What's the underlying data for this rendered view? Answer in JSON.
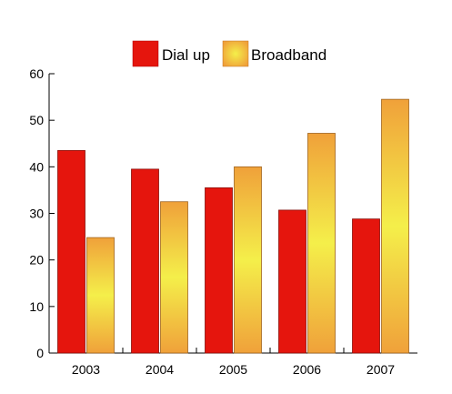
{
  "colors": {
    "dial_up": "#e5150d",
    "broadband_edge": "#f0a13a",
    "broadband_center": "#f4ef4a",
    "axis": "#000000"
  },
  "chart_data": {
    "type": "bar",
    "categories": [
      "2003",
      "2004",
      "2005",
      "2006",
      "2007"
    ],
    "series": [
      {
        "name": "Dial up",
        "values": [
          43.5,
          39.5,
          35.5,
          30.7,
          28.8
        ]
      },
      {
        "name": "Broadband",
        "values": [
          24.8,
          32.5,
          40.0,
          47.2,
          54.5
        ]
      }
    ],
    "ylim": [
      0,
      60
    ],
    "yticks": [
      "0",
      "10",
      "20",
      "30",
      "40",
      "50",
      "60"
    ],
    "legend_position": "top-center",
    "grid": false
  }
}
